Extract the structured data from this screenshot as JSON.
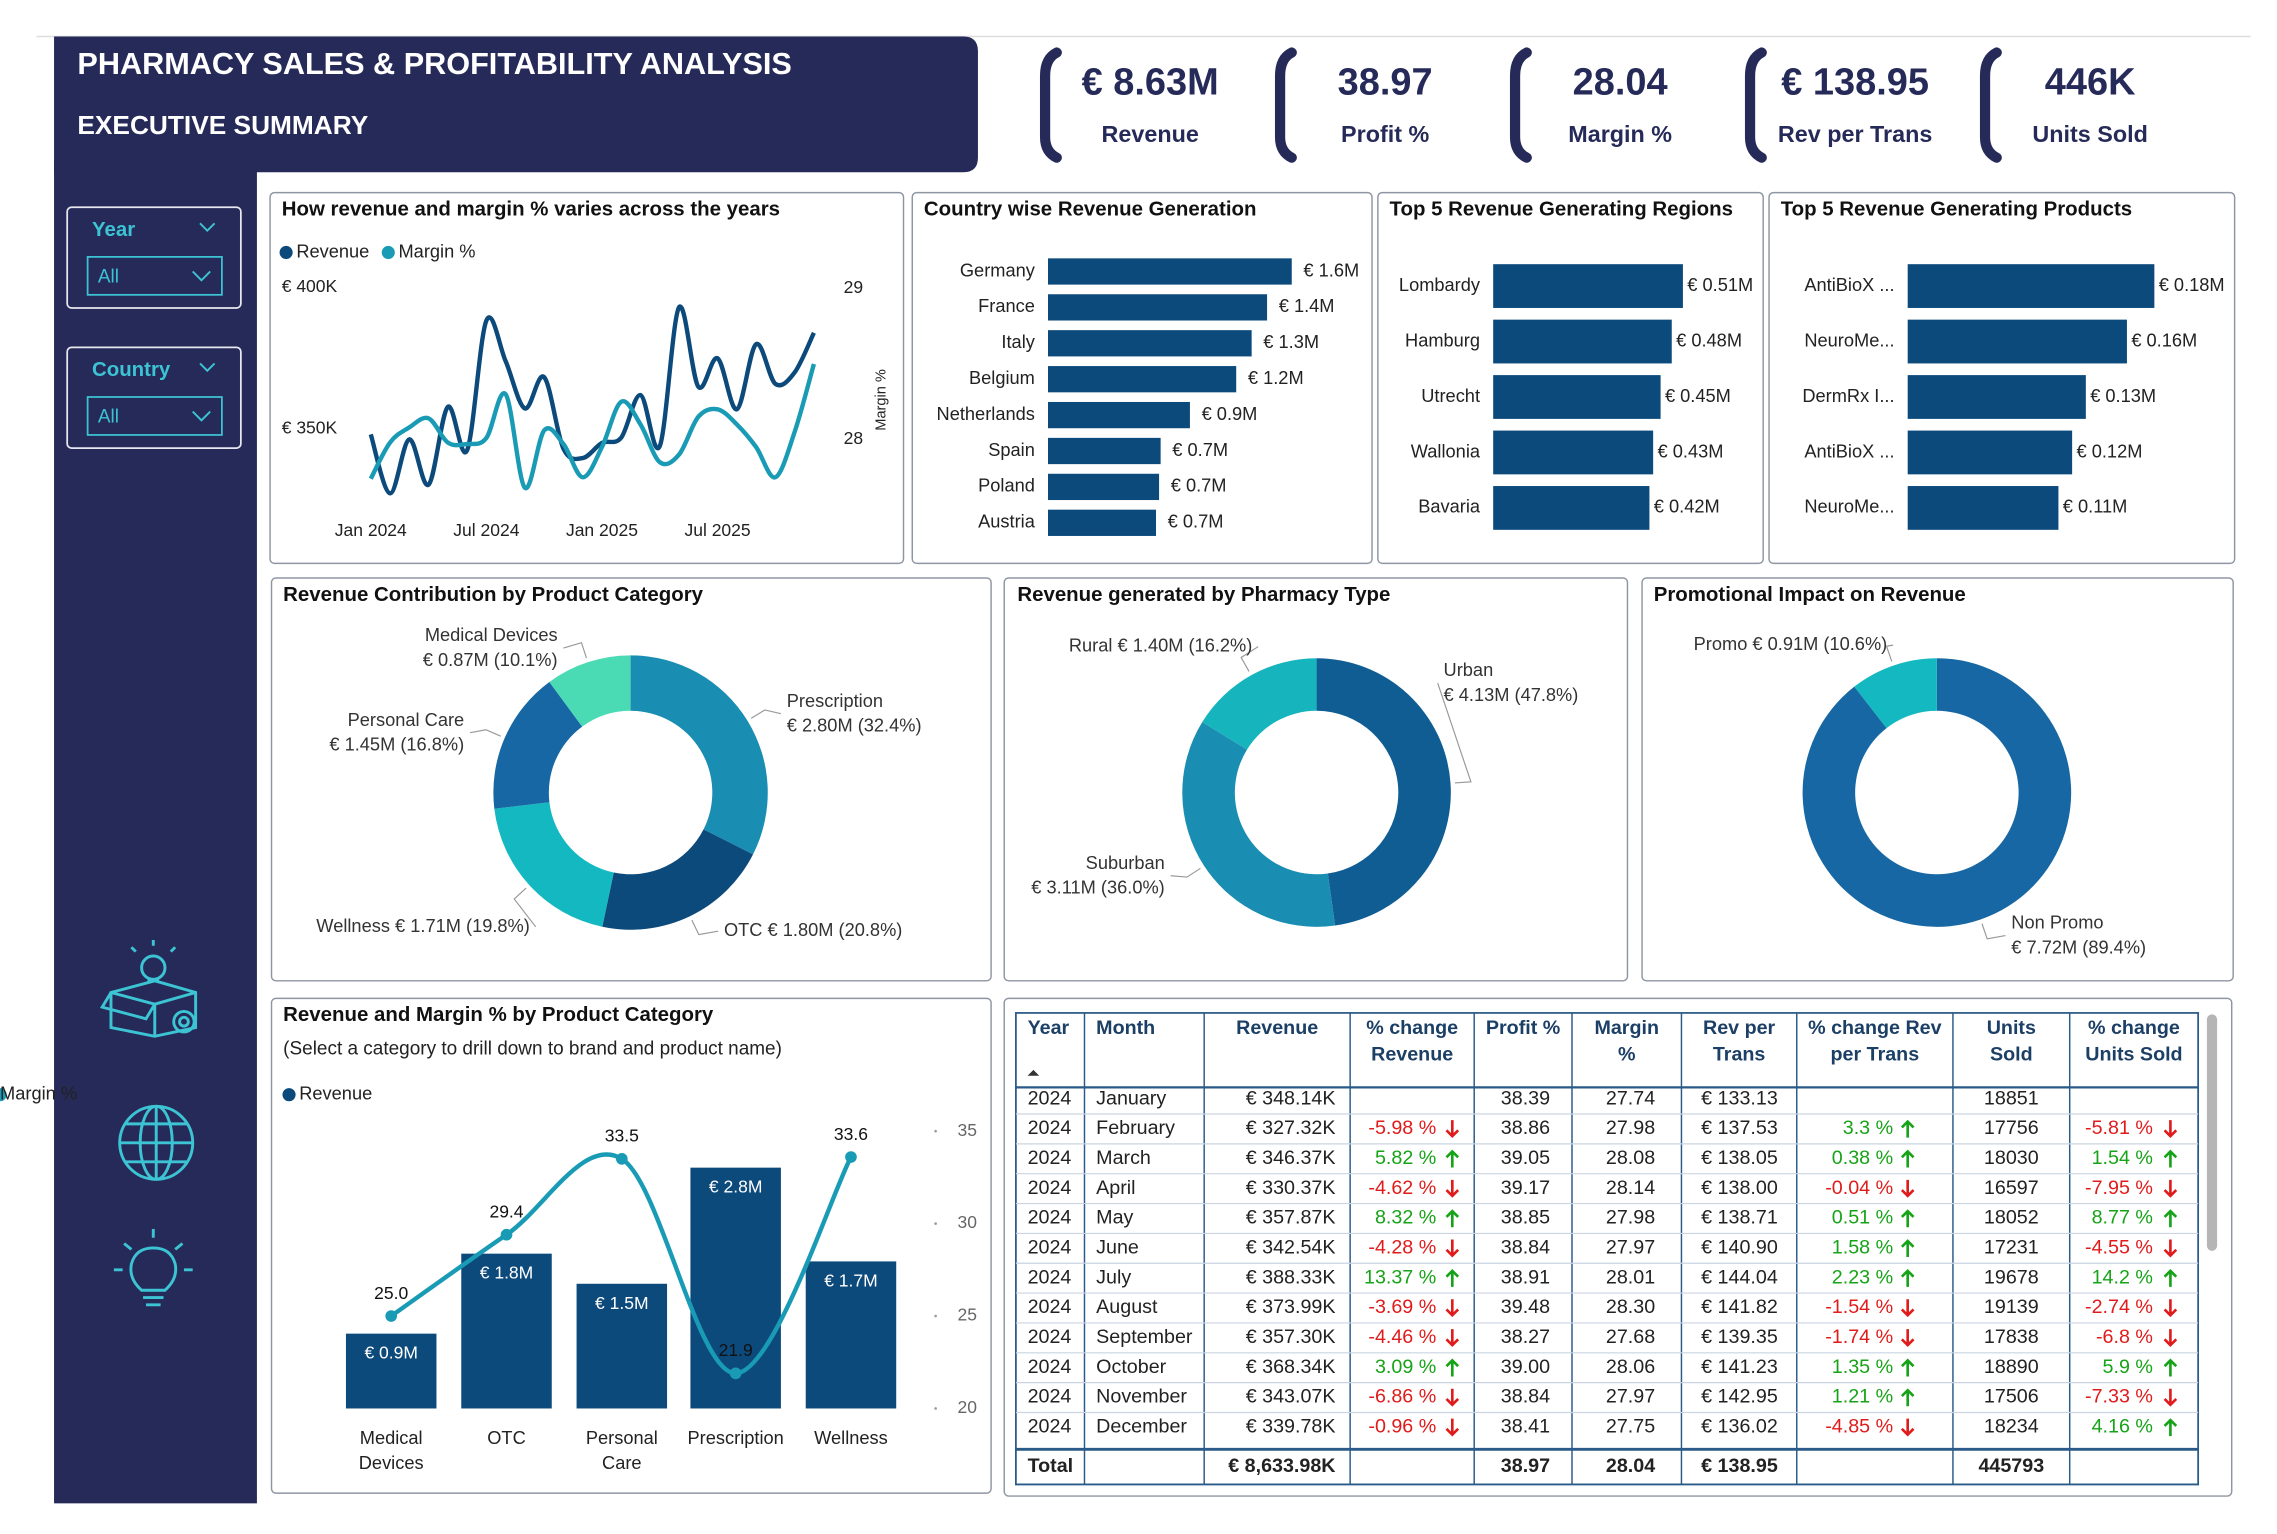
{
  "header": {
    "title": "PHARMACY SALES & PROFITABILITY ANALYSIS",
    "subtitle": "EXECUTIVE SUMMARY"
  },
  "kpis": [
    {
      "value": "€ 8.63M",
      "label": "Revenue"
    },
    {
      "value": "38.97",
      "label": "Profit %"
    },
    {
      "value": "28.04",
      "label": "Margin %"
    },
    {
      "value": "€ 138.95",
      "label": "Rev per Trans"
    },
    {
      "value": "446K",
      "label": "Units Sold"
    }
  ],
  "slicers": [
    {
      "label": "Year",
      "value": "All"
    },
    {
      "label": "Country",
      "value": "All"
    }
  ],
  "chart_data": [
    {
      "type": "line",
      "title": "How revenue and margin % varies across the years",
      "categories": [
        "Jan 2024",
        null,
        null,
        null,
        null,
        null,
        "Jul 2024",
        null,
        null,
        null,
        null,
        null,
        "Jan 2025",
        null,
        null,
        null,
        null,
        null,
        "Jul 2025",
        null,
        null,
        null,
        null,
        null
      ],
      "series": [
        {
          "name": "Revenue",
          "color": "#0d4a7c",
          "values": [
            348140,
            327320,
            346370,
            330370,
            357870,
            342540,
            388330,
            373990,
            357300,
            368340,
            343070,
            339780,
            345100,
            347000,
            362000,
            344000,
            393000,
            365000,
            375000,
            357000,
            380000,
            366000,
            370000,
            384000
          ]
        },
        {
          "name": "Margin %",
          "color": "#1a9bb5",
          "axis": "y2",
          "values": [
            27.74,
            27.98,
            28.08,
            28.14,
            27.98,
            27.97,
            28.01,
            28.3,
            27.68,
            28.06,
            27.97,
            27.75,
            27.95,
            28.25,
            28.1,
            27.85,
            27.9,
            28.15,
            28.2,
            28.1,
            27.95,
            27.75,
            28.05,
            28.5
          ]
        }
      ],
      "ylim": [
        325000,
        405000
      ],
      "yticks": [
        {
          "value": 350000,
          "label": "€ 350K"
        },
        {
          "value": 400000,
          "label": "€ 400K"
        }
      ],
      "y2lim": [
        27.6,
        29.1
      ],
      "y2ticks": [
        28,
        29
      ],
      "y2label": "Margin %"
    },
    {
      "type": "hbar",
      "title": "Country wise Revenue Generation",
      "categories": [
        "Germany",
        "France",
        "Italy",
        "Belgium",
        "Netherlands",
        "Spain",
        "Poland",
        "Austria"
      ],
      "values": [
        1.58,
        1.42,
        1.32,
        1.22,
        0.92,
        0.73,
        0.72,
        0.7
      ],
      "value_labels": [
        "€ 1.6M",
        "€ 1.4M",
        "€ 1.3M",
        "€ 1.2M",
        "€ 0.9M",
        "€ 0.7M",
        "€ 0.7M",
        "€ 0.7M"
      ],
      "color": "#0d4a7c"
    },
    {
      "type": "hbar",
      "title": "Top 5 Revenue Generating Regions",
      "categories": [
        "Lombardy",
        "Hamburg",
        "Utrecht",
        "Wallonia",
        "Bavaria"
      ],
      "values": [
        0.51,
        0.48,
        0.45,
        0.43,
        0.42
      ],
      "value_labels": [
        "€ 0.51M",
        "€ 0.48M",
        "€ 0.45M",
        "€ 0.43M",
        "€ 0.42M"
      ],
      "color": "#0d4a7c"
    },
    {
      "type": "hbar",
      "title": "Top 5 Revenue Generating Products",
      "categories": [
        "AntiBioX ...",
        "NeuroMe...",
        "DermRx I...",
        "AntiBioX ...",
        "NeuroMe..."
      ],
      "values": [
        0.18,
        0.16,
        0.13,
        0.12,
        0.11
      ],
      "value_labels": [
        "€ 0.18M",
        "€ 0.16M",
        "€ 0.13M",
        "€ 0.12M",
        "€ 0.11M"
      ],
      "color": "#0d4a7c"
    },
    {
      "type": "donut",
      "title": "Revenue Contribution by Product Category",
      "categories": [
        "Prescription",
        "OTC",
        "Wellness",
        "Personal Care",
        "Medical Devices"
      ],
      "values": [
        2.8,
        1.8,
        1.71,
        1.45,
        0.87
      ],
      "value_labels": [
        "€ 2.80M (32.4%)",
        "€ 1.80M (20.8%)",
        "€ 1.71M (19.8%)",
        "€ 1.45M (16.8%)",
        "€ 0.87M (10.1%)"
      ],
      "colors": [
        "#1a8db3",
        "#0d4a7c",
        "#14b8c0",
        "#1667a3",
        "#4adbb5"
      ]
    },
    {
      "type": "donut",
      "title": "Revenue generated by Pharmacy Type",
      "categories": [
        "Urban",
        "Suburban",
        "Rural"
      ],
      "values": [
        4.13,
        3.11,
        1.4
      ],
      "value_labels": [
        "€ 4.13M (47.8%)",
        "€ 3.11M (36.0%)",
        "€ 1.40M (16.2%)"
      ],
      "colors": [
        "#0f5d93",
        "#1a8db3",
        "#16b5bd"
      ]
    },
    {
      "type": "donut",
      "title": "Promotional Impact on Revenue",
      "categories": [
        "Non Promo",
        "Promo"
      ],
      "values": [
        7.72,
        0.91
      ],
      "value_labels": [
        "€ 7.72M (89.4%)",
        "€ 0.91M (10.6%)"
      ],
      "colors": [
        "#1667a3",
        "#14b8c0"
      ]
    },
    {
      "type": "combo",
      "title": "Revenue and Margin % by Product Category",
      "subtitle": "(Select a category to drill down to brand and product name)",
      "categories": [
        "Medical Devices",
        "OTC",
        "Personal Care",
        "Prescription",
        "Wellness"
      ],
      "series": [
        {
          "name": "Revenue",
          "type": "bar",
          "color": "#0d4a7c",
          "values": [
            0.87,
            1.8,
            1.45,
            2.8,
            1.71
          ],
          "value_labels": [
            "€ 0.9M",
            "€ 1.8M",
            "€ 1.5M",
            "€ 2.8M",
            "€ 1.7M"
          ]
        },
        {
          "name": "Margin %",
          "type": "line",
          "axis": "y2",
          "color": "#1a9bb5",
          "values": [
            25,
            29.4,
            33.5,
            21.9,
            33.6
          ],
          "value_labels": [
            "25.0",
            "29.4",
            "33.5",
            "21.9",
            "33.6"
          ]
        }
      ],
      "y2lim": [
        20,
        35
      ],
      "y2ticks": [
        20,
        25,
        30,
        35
      ]
    }
  ],
  "table": {
    "header": [
      "Year",
      "Month",
      "Revenue",
      "% change Revenue",
      "Profit %",
      "Margin %",
      "Rev per Trans",
      "% change Rev per Trans",
      "Units Sold",
      "% change Units Sold"
    ],
    "rows": [
      [
        "2024",
        "January",
        "€ 348.14K",
        null,
        "38.39",
        "27.74",
        "€ 133.13",
        null,
        "18851",
        null
      ],
      [
        "2024",
        "February",
        "€ 327.32K",
        "-5.98 %",
        "38.86",
        "27.98",
        "€ 137.53",
        "3.3 %",
        "17756",
        "-5.81 %"
      ],
      [
        "2024",
        "March",
        "€ 346.37K",
        "5.82 %",
        "39.05",
        "28.08",
        "€ 138.05",
        "0.38 %",
        "18030",
        "1.54 %"
      ],
      [
        "2024",
        "April",
        "€ 330.37K",
        "-4.62 %",
        "39.17",
        "28.14",
        "€ 138.00",
        "-0.04 %",
        "16597",
        "-7.95 %"
      ],
      [
        "2024",
        "May",
        "€ 357.87K",
        "8.32 %",
        "38.85",
        "27.98",
        "€ 138.71",
        "0.51 %",
        "18052",
        "8.77 %"
      ],
      [
        "2024",
        "June",
        "€ 342.54K",
        "-4.28 %",
        "38.84",
        "27.97",
        "€ 140.90",
        "1.58 %",
        "17231",
        "-4.55 %"
      ],
      [
        "2024",
        "July",
        "€ 388.33K",
        "13.37 %",
        "38.91",
        "28.01",
        "€ 144.04",
        "2.23 %",
        "19678",
        "14.2 %"
      ],
      [
        "2024",
        "August",
        "€ 373.99K",
        "-3.69 %",
        "39.48",
        "28.30",
        "€ 141.82",
        "-1.54 %",
        "19139",
        "-2.74 %"
      ],
      [
        "2024",
        "September",
        "€ 357.30K",
        "-4.46 %",
        "38.27",
        "27.68",
        "€ 139.35",
        "-1.74 %",
        "17838",
        "-6.8 %"
      ],
      [
        "2024",
        "October",
        "€ 368.34K",
        "3.09 %",
        "39.00",
        "28.06",
        "€ 141.23",
        "1.35 %",
        "18890",
        "5.9 %"
      ],
      [
        "2024",
        "November",
        "€ 343.07K",
        "-6.86 %",
        "38.84",
        "27.97",
        "€ 142.95",
        "1.21 %",
        "17506",
        "-7.33 %"
      ],
      [
        "2024",
        "December",
        "€ 339.78K",
        "-0.96 %",
        "38.41",
        "27.75",
        "€ 136.02",
        "-4.85 %",
        "18234",
        "4.16 %"
      ]
    ],
    "total": [
      "Total",
      null,
      "€ 8,633.98K",
      null,
      "38.97",
      "28.04",
      "€ 138.95",
      null,
      "445793",
      null
    ]
  }
}
